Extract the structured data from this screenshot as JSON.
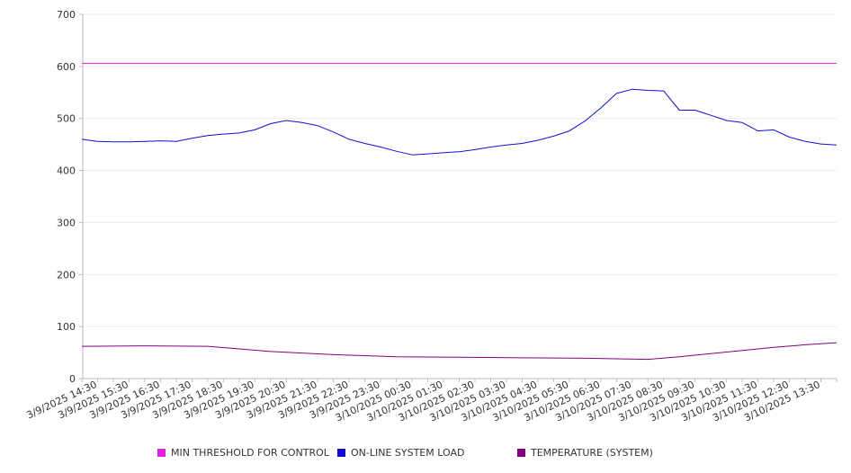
{
  "chart_data": {
    "type": "line",
    "ylim": [
      0,
      700
    ],
    "yticks": [
      0,
      100,
      200,
      300,
      400,
      500,
      600,
      700
    ],
    "x_tick_labels": [
      "3/9/2025 14:30",
      "3/9/2025 15:30",
      "3/9/2025 16:30",
      "3/9/2025 17:30",
      "3/9/2025 18:30",
      "3/9/2025 19:30",
      "3/9/2025 20:30",
      "3/9/2025 21:30",
      "3/9/2025 22:30",
      "3/9/2025 23:30",
      "3/10/2025 00:30",
      "3/10/2025 01:30",
      "3/10/2025 02:30",
      "3/10/2025 03:30",
      "3/10/2025 04:30",
      "3/10/2025 05:30",
      "3/10/2025 06:30",
      "3/10/2025 07:30",
      "3/10/2025 08:30",
      "3/10/2025 09:30",
      "3/10/2025 10:30",
      "3/10/2025 11:30",
      "3/10/2025 12:30",
      "3/10/2025 13:30"
    ],
    "grid": true,
    "legend_position": "bottom",
    "series": [
      {
        "name": "MIN THRESHOLD FOR CONTROL",
        "color": "#e020e0",
        "x": [
          "3/9/2025 14:00",
          "3/10/2025 14:00"
        ],
        "values": [
          606,
          606
        ]
      },
      {
        "name": "ON-LINE SYSTEM LOAD",
        "color": "#1010cc",
        "x": [
          "3/9/2025 14:00",
          "3/9/2025 14:30",
          "3/9/2025 15:00",
          "3/9/2025 15:30",
          "3/9/2025 16:00",
          "3/9/2025 16:30",
          "3/9/2025 17:00",
          "3/9/2025 17:30",
          "3/9/2025 18:00",
          "3/9/2025 18:30",
          "3/9/2025 19:00",
          "3/9/2025 19:30",
          "3/9/2025 20:00",
          "3/9/2025 20:30",
          "3/9/2025 21:00",
          "3/9/2025 21:30",
          "3/9/2025 22:00",
          "3/9/2025 22:30",
          "3/9/2025 23:00",
          "3/9/2025 23:30",
          "3/10/2025 00:00",
          "3/10/2025 00:30",
          "3/10/2025 01:00",
          "3/10/2025 01:30",
          "3/10/2025 02:00",
          "3/10/2025 02:30",
          "3/10/2025 03:00",
          "3/10/2025 03:30",
          "3/10/2025 04:00",
          "3/10/2025 04:30",
          "3/10/2025 05:00",
          "3/10/2025 05:30",
          "3/10/2025 06:00",
          "3/10/2025 06:30",
          "3/10/2025 07:00",
          "3/10/2025 07:30",
          "3/10/2025 08:00",
          "3/10/2025 08:30",
          "3/10/2025 09:00",
          "3/10/2025 09:30",
          "3/10/2025 10:00",
          "3/10/2025 10:30",
          "3/10/2025 11:00",
          "3/10/2025 11:30",
          "3/10/2025 12:00",
          "3/10/2025 12:30",
          "3/10/2025 13:00",
          "3/10/2025 13:30",
          "3/10/2025 14:00"
        ],
        "values": [
          460,
          456,
          455,
          455,
          456,
          457,
          456,
          462,
          467,
          470,
          472,
          478,
          490,
          496,
          492,
          486,
          474,
          460,
          452,
          445,
          437,
          430,
          432,
          434,
          436,
          440,
          445,
          449,
          452,
          458,
          466,
          476,
          495,
          520,
          548,
          556,
          554,
          553,
          516,
          516,
          506,
          496,
          492,
          476,
          478,
          464,
          456,
          451,
          449
        ]
      },
      {
        "name": "TEMPERATURE (SYSTEM)",
        "color": "#800080",
        "x": [
          "3/9/2025 14:00",
          "3/9/2025 16:00",
          "3/9/2025 18:00",
          "3/9/2025 19:00",
          "3/9/2025 20:00",
          "3/9/2025 21:00",
          "3/9/2025 22:00",
          "3/9/2025 23:00",
          "3/10/2025 00:00",
          "3/10/2025 02:00",
          "3/10/2025 04:00",
          "3/10/2025 06:00",
          "3/10/2025 07:00",
          "3/10/2025 08:00",
          "3/10/2025 09:00",
          "3/10/2025 10:00",
          "3/10/2025 11:00",
          "3/10/2025 12:00",
          "3/10/2025 13:00",
          "3/10/2025 14:00"
        ],
        "values": [
          62,
          63,
          62,
          57,
          52,
          49,
          46,
          44,
          42,
          41,
          40,
          39,
          38,
          37,
          42,
          48,
          54,
          60,
          65,
          69
        ]
      }
    ]
  }
}
